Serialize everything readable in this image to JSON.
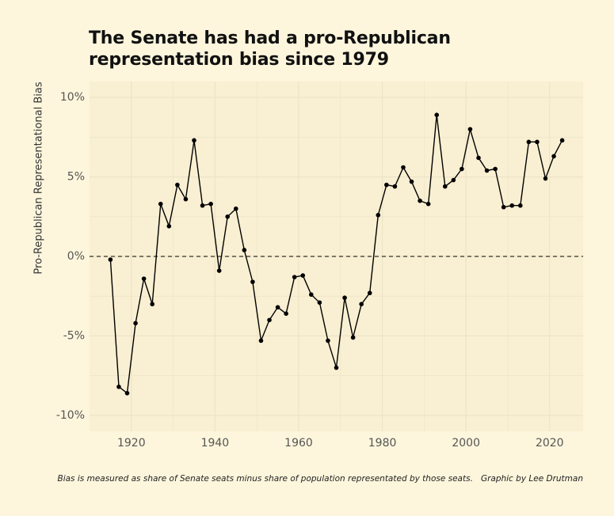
{
  "colors": {
    "background": "#fdf6dc",
    "panel": "#f9efd2",
    "grid": "#ece3c6",
    "line": "#000000",
    "reference_line": "#000000"
  },
  "caption": {
    "note": "Bias is measured as share of Senate seats minus share of population representated by those seats.",
    "credit": "Graphic by Lee Drutman"
  },
  "chart_data": {
    "type": "line",
    "title": [
      "The Senate has had a pro-Republican",
      "representation bias since 1979"
    ],
    "xlabel": "",
    "ylabel": "Pro-Republican Representational Bias",
    "xlim": [
      1910,
      2028
    ],
    "ylim": [
      -11,
      11
    ],
    "x_ticks": [
      1920,
      1940,
      1960,
      1980,
      2000,
      2020
    ],
    "x_tick_labels": [
      "1920",
      "1940",
      "1960",
      "1980",
      "2000",
      "2020"
    ],
    "y_ticks": [
      -10,
      -5,
      0,
      5,
      10
    ],
    "y_tick_labels": [
      "-10%",
      "-5%",
      "0%",
      "5%",
      "10%"
    ],
    "reference_line": {
      "y": 0,
      "style": "dashed"
    },
    "grid": true,
    "legend": "none",
    "series": [
      {
        "x": [
          1915,
          1917,
          1919,
          1921,
          1923,
          1925,
          1927,
          1929,
          1931,
          1933,
          1935,
          1937,
          1939,
          1941,
          1943,
          1945,
          1947,
          1949,
          1951,
          1953,
          1955,
          1957,
          1959,
          1961,
          1963,
          1965,
          1967,
          1969,
          1971,
          1973,
          1975,
          1977,
          1979,
          1981,
          1983,
          1985,
          1987,
          1989,
          1991,
          1993,
          1995,
          1997,
          1999,
          2001,
          2003,
          2005,
          2007,
          2009,
          2011,
          2013,
          2015,
          2017,
          2019,
          2021,
          2023
        ],
        "y": [
          -0.2,
          -8.2,
          -8.6,
          -4.2,
          -1.4,
          -3.0,
          3.3,
          1.9,
          4.5,
          3.6,
          7.3,
          3.2,
          3.3,
          -0.9,
          2.5,
          3.0,
          0.4,
          -1.6,
          -5.3,
          -4.0,
          -3.2,
          -3.6,
          -1.3,
          -1.2,
          -2.4,
          -2.9,
          -5.3,
          -7.0,
          -2.6,
          -5.1,
          -3.0,
          -2.3,
          2.6,
          4.5,
          4.4,
          5.6,
          4.7,
          3.5,
          3.3,
          8.9,
          4.4,
          4.8,
          5.5,
          8.0,
          6.2,
          5.4,
          5.5,
          3.1,
          3.2,
          3.2,
          7.2,
          7.2,
          4.9,
          6.3,
          7.3
        ]
      }
    ]
  }
}
